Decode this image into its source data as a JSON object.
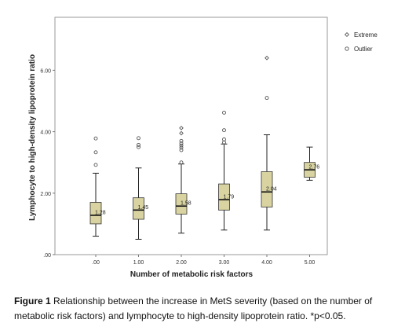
{
  "chart_data": {
    "type": "boxplot",
    "ylabel": "Lymphocyte to high-density lipoprotein ratio",
    "xlabel": "Number of metabolic risk factors",
    "ylim": [
      0,
      7.0
    ],
    "y_ticks": [
      {
        "value": 0,
        "label": ".00"
      },
      {
        "value": 2,
        "label": "2.00"
      },
      {
        "value": 4,
        "label": "4.00"
      },
      {
        "value": 6,
        "label": "6.00"
      }
    ],
    "categories": [
      ".00",
      "1.00",
      "2.00",
      "3.00",
      "4.00",
      "5.00"
    ],
    "boxes": [
      {
        "category": ".00",
        "whisker_low": 0.6,
        "q1": 1.0,
        "median": 1.28,
        "q3": 1.7,
        "whisker_high": 2.65,
        "label": "1.28",
        "outliers": [
          2.92,
          3.33,
          3.78
        ],
        "extremes": []
      },
      {
        "category": "1.00",
        "whisker_low": 0.5,
        "q1": 1.15,
        "median": 1.45,
        "q3": 1.85,
        "whisker_high": 2.82,
        "label": "1.45",
        "outliers": [
          3.5,
          3.57,
          3.79
        ],
        "extremes": []
      },
      {
        "category": "2.00",
        "whisker_low": 0.7,
        "q1": 1.32,
        "median": 1.58,
        "q3": 1.98,
        "whisker_high": 2.95,
        "label": "1.58",
        "outliers": [
          3.0,
          3.4,
          3.48,
          3.55,
          3.62,
          3.7
        ],
        "extremes": [
          3.95,
          4.12
        ]
      },
      {
        "category": "3.00",
        "whisker_low": 0.8,
        "q1": 1.45,
        "median": 1.79,
        "q3": 2.3,
        "whisker_high": 3.6,
        "label": "1.79",
        "outliers": [
          3.65,
          3.75,
          4.05,
          4.62
        ],
        "extremes": []
      },
      {
        "category": "4.00",
        "whisker_low": 0.8,
        "q1": 1.55,
        "median": 2.04,
        "q3": 2.7,
        "whisker_high": 3.9,
        "label": "2.04",
        "outliers": [
          5.1
        ],
        "extremes": [
          6.4
        ]
      },
      {
        "category": "5.00",
        "whisker_low": 2.42,
        "q1": 2.52,
        "median": 2.76,
        "q3": 3.0,
        "whisker_high": 3.5,
        "label": "2.76",
        "outliers": [],
        "extremes": []
      }
    ],
    "legend": {
      "position": "top-right",
      "entries": [
        {
          "marker": "diamond",
          "label": "Extreme"
        },
        {
          "marker": "circle",
          "label": "Outlier"
        }
      ]
    },
    "colors": {
      "box_fill": "#d8d3a0",
      "plot_border": "#9a9a9a",
      "marker": "#555555"
    }
  },
  "caption": {
    "figure_label": "Figure 1",
    "text": "Relationship between the increase in MetS severity (based on the number of metabolic risk factors) and lymphocyte to high-density lipoprotein ratio. *p<0.05."
  }
}
